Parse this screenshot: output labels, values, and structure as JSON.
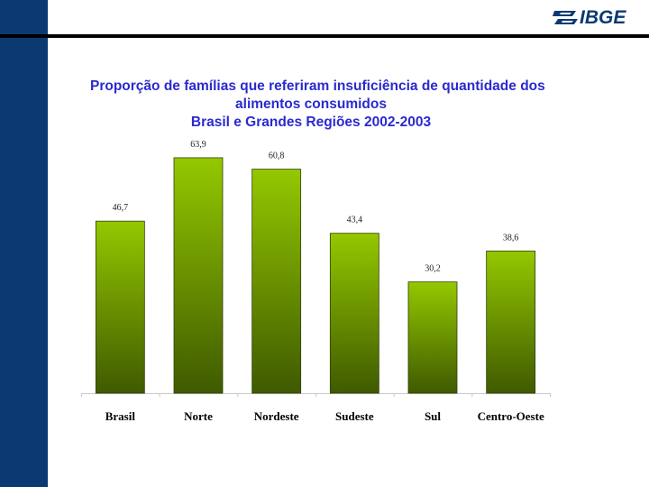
{
  "logo": {
    "text": "IBGE",
    "color": "#0b3a72"
  },
  "colors": {
    "left_band": "#0b3a72",
    "title": "#2a2ad0",
    "bar_top": "#94c800",
    "bar_bottom": "#3f5a00"
  },
  "chart_data": {
    "type": "bar",
    "title_lines": [
      "Proporção de famílias que referiram insuficiência de quantidade dos",
      "alimentos consumidos",
      "Brasil e Grandes Regiões 2002-2003"
    ],
    "categories": [
      "Brasil",
      "Norte",
      "Nordeste",
      "Sudeste",
      "Sul",
      "Centro-Oeste"
    ],
    "values": [
      46.7,
      63.9,
      60.8,
      43.4,
      30.2,
      38.6
    ],
    "value_labels": [
      "46,7",
      "63,9",
      "60,8",
      "43,4",
      "30,2",
      "38,6"
    ],
    "xlabel": "",
    "ylabel": "",
    "ylim": [
      0,
      70
    ]
  }
}
